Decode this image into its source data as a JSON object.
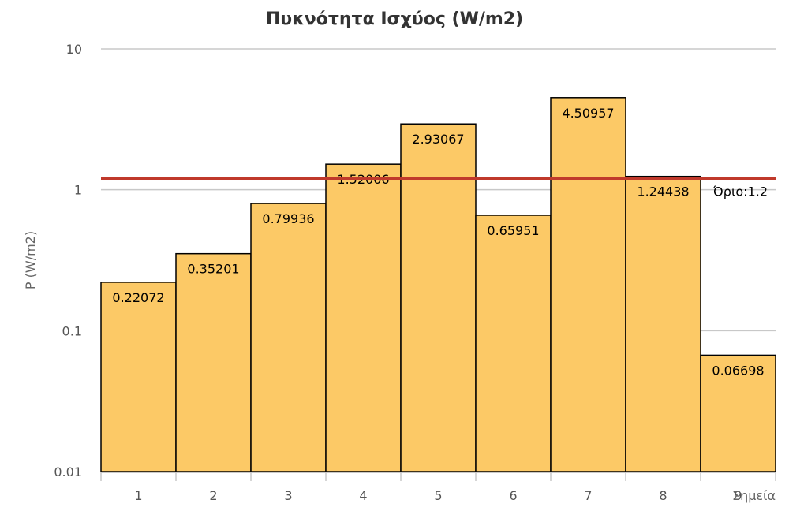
{
  "chart_data": {
    "type": "bar",
    "title": "Πυκνότητα Ισχύος (W/m2)",
    "xlabel": "Σημεία",
    "ylabel": "P (W/m2)",
    "yscale": "log",
    "ylim": [
      0.01,
      10
    ],
    "yticks": [
      "0.01",
      "0.1",
      "1",
      "10"
    ],
    "grid": true,
    "categories": [
      "1",
      "2",
      "3",
      "4",
      "5",
      "6",
      "7",
      "8",
      "9"
    ],
    "values": [
      0.22072,
      0.35201,
      0.79936,
      1.52006,
      2.93067,
      0.65951,
      4.50957,
      1.24438,
      0.06698
    ],
    "value_labels": [
      "0.22072",
      "0.35201",
      "0.79936",
      "1.52006",
      "2.93067",
      "0.65951",
      "4.50957",
      "1.24438",
      "0.06698"
    ],
    "threshold": {
      "value": 1.2,
      "label": "Όριο:1.2",
      "color": "#c0392b"
    },
    "colors": {
      "bar_fill": "#fcc966",
      "bar_stroke": "#000000",
      "grid": "#c8c8c8",
      "axis": "#c8c8c8"
    }
  }
}
